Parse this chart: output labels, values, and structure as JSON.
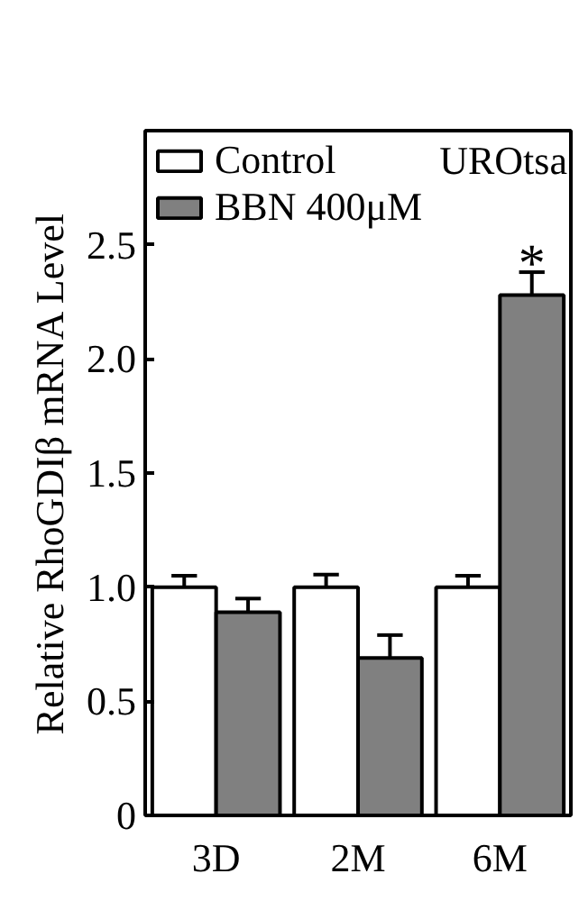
{
  "chart_data": {
    "type": "bar",
    "categories": [
      "3D",
      "2M",
      "6M"
    ],
    "ylabel": "Relative RhoGDIβ mRNA Level",
    "ylim": [
      0,
      3.0
    ],
    "yticks": [
      0,
      0.5,
      {
        "value": 1,
        "label": "1.0"
      },
      1.5,
      {
        "value": 2,
        "label": "2.0"
      },
      2.5
    ],
    "series": [
      {
        "name": "Control",
        "color": "#ffffff",
        "values": [
          1.0,
          1.0,
          1.0
        ],
        "errors": [
          [
            1.0,
            1.05
          ],
          [
            1.0,
            1.055
          ],
          [
            1.0,
            1.05
          ]
        ]
      },
      {
        "name": "BBN 400μM",
        "color": "#808080",
        "values": [
          0.89,
          0.69,
          2.28
        ],
        "errors": [
          [
            0.89,
            0.95
          ],
          [
            0.69,
            0.79
          ],
          [
            2.28,
            2.38
          ]
        ]
      }
    ],
    "annotations": [
      "UROtsa",
      {
        "text": "*",
        "x": "6M",
        "y": 2.28
      }
    ],
    "legend": "top left",
    "grid": false
  }
}
